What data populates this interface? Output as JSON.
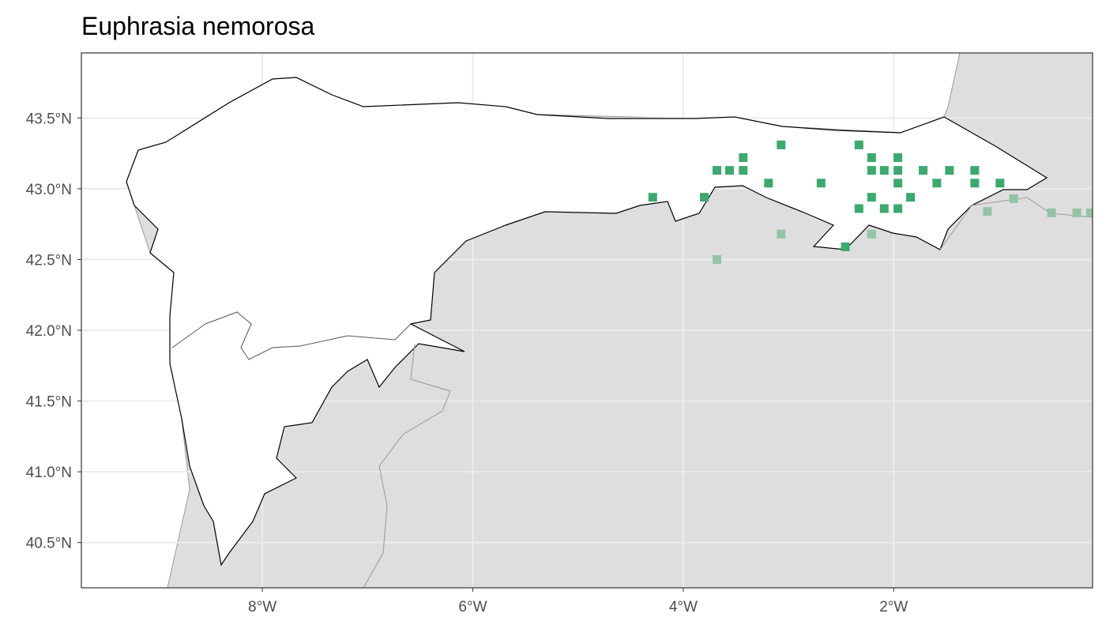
{
  "chart_data": {
    "type": "map-points",
    "title": "Euphrasia nemorosa",
    "xlim": [
      -9.72,
      -0.11
    ],
    "ylim": [
      40.18,
      43.96
    ],
    "xticks": [
      {
        "value": -8,
        "label": "8°W"
      },
      {
        "value": -6,
        "label": "6°W"
      },
      {
        "value": -4,
        "label": "4°W"
      },
      {
        "value": -2,
        "label": "2°W"
      }
    ],
    "yticks": [
      {
        "value": 40.5,
        "label": "40.5°N"
      },
      {
        "value": 41.0,
        "label": "41.0°N"
      },
      {
        "value": 41.5,
        "label": "41.5°N"
      },
      {
        "value": 42.0,
        "label": "42.0°N"
      },
      {
        "value": 42.5,
        "label": "42.5°N"
      },
      {
        "value": 43.0,
        "label": "43.0°N"
      },
      {
        "value": 43.5,
        "label": "43.5°N"
      }
    ],
    "grid": true,
    "series": [
      {
        "color": "#3aaa6e",
        "x": [
          -4.29,
          -3.8,
          -3.68,
          -3.56,
          -3.43,
          -3.43,
          -3.19,
          -3.07,
          -2.69,
          -2.33,
          -2.21,
          -2.21,
          -2.09,
          -1.96,
          -1.96,
          -1.96,
          -2.21,
          -2.33,
          -2.09,
          -1.96,
          -1.84,
          -1.72,
          -1.59,
          -1.47,
          -1.23,
          -1.23,
          -0.99,
          -2.46
        ],
        "y": [
          42.94,
          42.94,
          43.13,
          43.13,
          43.13,
          43.22,
          43.04,
          43.31,
          43.04,
          43.31,
          43.22,
          43.13,
          43.13,
          43.13,
          43.22,
          43.04,
          42.94,
          42.86,
          42.86,
          42.86,
          42.94,
          43.13,
          43.04,
          43.13,
          43.13,
          43.04,
          43.04,
          42.59
        ]
      },
      {
        "color": "#94c4a6",
        "x": [
          -3.68,
          -3.07,
          -2.21,
          -1.11,
          -0.86,
          -0.5,
          -0.26,
          -0.13
        ],
        "y": [
          42.5,
          42.68,
          42.68,
          42.84,
          42.93,
          42.83,
          42.83,
          42.83
        ]
      }
    ]
  }
}
